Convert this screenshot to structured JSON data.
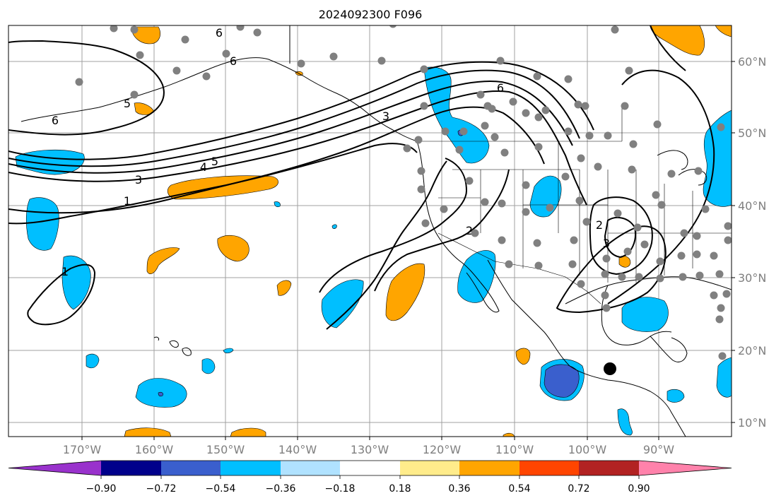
{
  "title": "2024092300 F096",
  "map": {
    "longitude_labels": [
      "170°W",
      "160°W",
      "150°W",
      "140°W",
      "130°W",
      "120°W",
      "110°W",
      "100°W",
      "90°W"
    ],
    "latitude_labels": [
      "60°N",
      "50°N",
      "40°N",
      "30°N",
      "20°N",
      "10°N"
    ],
    "contour_labels": [
      "6",
      "5",
      "6",
      "6",
      "3",
      "4",
      "5",
      "3",
      "1",
      "6",
      "2",
      "2",
      "3",
      "1"
    ],
    "contour_color": "#000000",
    "station_color": "#808080",
    "gridline_color": "#a0a0a0",
    "fill_colors": {
      "light_blue": "#00bfff",
      "medium_blue": "#3a5fcd",
      "orange": "#ffa500"
    }
  },
  "colorbar": {
    "orientation": "horizontal",
    "extend": "both",
    "tick_labels": [
      "−0.90",
      "−0.72",
      "−0.54",
      "−0.36",
      "−0.18",
      "0.18",
      "0.36",
      "0.54",
      "0.72",
      "0.90"
    ],
    "colors": [
      "#9932cc",
      "#00008b",
      "#3a5fcd",
      "#00bfff",
      "#b0e2ff",
      "#ffffff",
      "#ffec8b",
      "#ffa500",
      "#ff4500",
      "#b22222",
      "#ff82ab"
    ]
  }
}
